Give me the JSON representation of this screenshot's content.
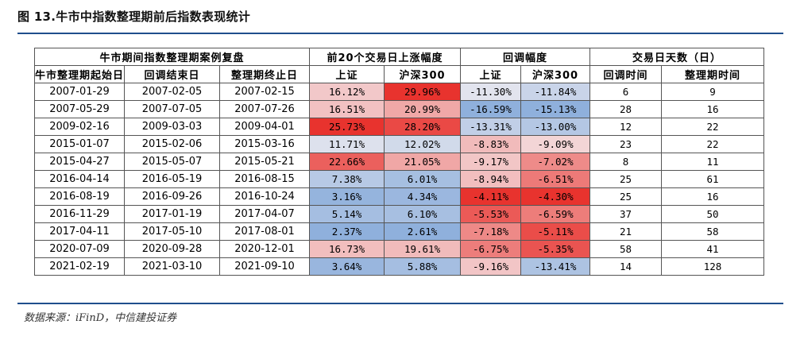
{
  "title": "图 13.牛市中指数整理期前后指数表现统计",
  "source": "数据来源：iFinD，中信建投证券",
  "chart_data": {
    "type": "table",
    "group_headers": [
      {
        "label": "牛市期间指数整理期案例复盘",
        "span": 3
      },
      {
        "label": "前20个交易日上涨幅度",
        "span": 2
      },
      {
        "label": "回调幅度",
        "span": 2
      },
      {
        "label": "交易日天数（日）",
        "span": 2
      }
    ],
    "columns": [
      "牛市整理期起始日",
      "回调结束日",
      "整理期终止日",
      "上证",
      "沪深300",
      "上证",
      "沪深300",
      "回调时间",
      "整理期时间"
    ],
    "rows": [
      [
        "2007-01-29",
        "2007-02-05",
        "2007-02-15",
        "16.12%",
        "29.96%",
        "-11.30%",
        "-11.84%",
        "6",
        "9"
      ],
      [
        "2007-05-29",
        "2007-07-05",
        "2007-07-26",
        "16.51%",
        "20.99%",
        "-16.59%",
        "-15.13%",
        "28",
        "16"
      ],
      [
        "2009-02-16",
        "2009-03-03",
        "2009-04-01",
        "25.73%",
        "28.20%",
        "-13.31%",
        "-13.00%",
        "12",
        "22"
      ],
      [
        "2015-01-07",
        "2015-02-06",
        "2015-03-16",
        "11.71%",
        "12.02%",
        "-8.83%",
        "-9.09%",
        "23",
        "22"
      ],
      [
        "2015-04-27",
        "2015-05-07",
        "2015-05-21",
        "22.66%",
        "21.05%",
        "-9.17%",
        "-7.02%",
        "8",
        "11"
      ],
      [
        "2016-04-14",
        "2016-05-19",
        "2016-08-15",
        "7.38%",
        "6.01%",
        "-8.94%",
        "-6.51%",
        "25",
        "61"
      ],
      [
        "2016-08-19",
        "2016-09-26",
        "2016-10-24",
        "3.16%",
        "4.34%",
        "-4.11%",
        "-4.30%",
        "25",
        "16"
      ],
      [
        "2016-11-29",
        "2017-01-19",
        "2017-04-07",
        "5.14%",
        "6.10%",
        "-5.53%",
        "-6.59%",
        "37",
        "50"
      ],
      [
        "2017-04-11",
        "2017-05-10",
        "2017-08-01",
        "2.37%",
        "2.61%",
        "-7.18%",
        "-5.11%",
        "21",
        "58"
      ],
      [
        "2020-07-09",
        "2020-09-28",
        "2020-12-01",
        "16.73%",
        "19.61%",
        "-6.75%",
        "-5.35%",
        "58",
        "41"
      ],
      [
        "2021-02-19",
        "2021-03-10",
        "2021-09-10",
        "3.64%",
        "5.88%",
        "-9.16%",
        "-13.41%",
        "14",
        "128"
      ]
    ],
    "colors": {
      "high": "#e8332e",
      "mid": "#f5f0f2",
      "low": "#8fb0dc",
      "border": "#555555",
      "rule": "#1f4e8c"
    }
  }
}
